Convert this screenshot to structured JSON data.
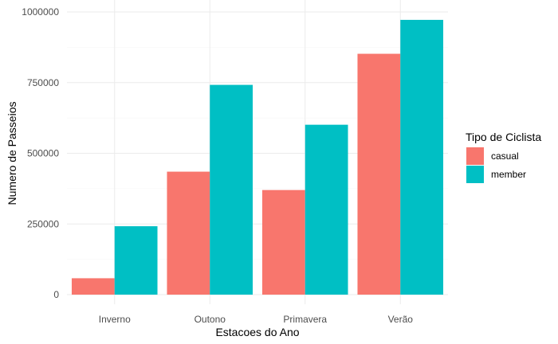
{
  "chart_data": {
    "type": "bar",
    "categories": [
      "Inverno",
      "Outono",
      "Primavera",
      "Verão"
    ],
    "series": [
      {
        "name": "casual",
        "color": "#F8766D",
        "values": [
          58000,
          435000,
          370000,
          852000
        ]
      },
      {
        "name": "member",
        "color": "#00BFC4",
        "values": [
          242000,
          742000,
          601000,
          972000
        ]
      }
    ],
    "xlabel": "Estacoes do Ano",
    "ylabel": "Numero de Passeios",
    "ylim": [
      0,
      1000000
    ],
    "yticks": [
      0,
      250000,
      500000,
      750000,
      1000000
    ],
    "ytick_labels": [
      "0",
      "250000",
      "500000",
      "750000",
      "1000000"
    ],
    "grid": true,
    "legend": {
      "title": "Tipo de Ciclista",
      "position": "right"
    }
  }
}
